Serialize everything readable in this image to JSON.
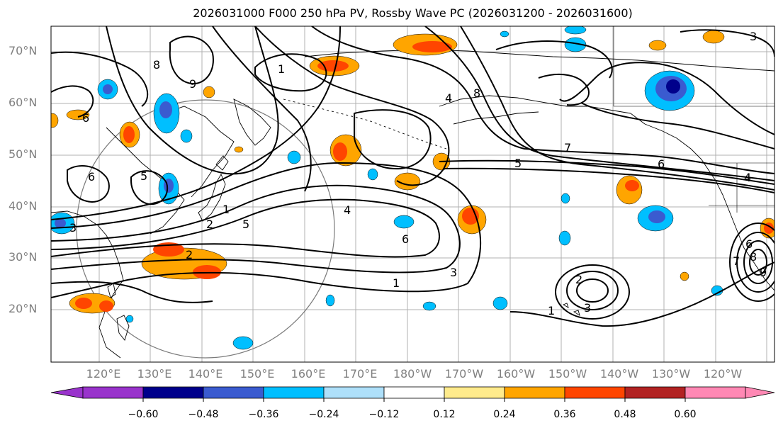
{
  "title": "2026031000 F000 250 hPa PV, Rossby Wave PC (2026031200 - 2026031600)",
  "lat_labels": [
    "70°N",
    "60°N",
    "50°N",
    "40°N",
    "30°N",
    "20°N"
  ],
  "lon_labels": [
    "120°E",
    "130°E",
    "140°E",
    "150°E",
    "160°E",
    "170°E",
    "180°W",
    "170°W",
    "160°W",
    "150°W",
    "140°W",
    "130°W",
    "120°W"
  ],
  "contour_labels": [
    "1",
    "8",
    "9",
    "4",
    "6",
    "8",
    "7",
    "5",
    "1",
    "6",
    "5",
    "3",
    "2",
    "1",
    "5",
    "4",
    "6",
    "3",
    "2",
    "1",
    "2",
    "3",
    "6",
    "4",
    "6",
    "7",
    "8",
    "9",
    "3"
  ],
  "colorbar": {
    "ticks": [
      "−0.60",
      "−0.48",
      "−0.36",
      "−0.24",
      "−0.12",
      "0.12",
      "0.24",
      "0.36",
      "0.48",
      "0.60"
    ],
    "colors": [
      "#9933cc",
      "#00008b",
      "#3a5bd0",
      "#00bfff",
      "#aee0fa",
      "#ffffff",
      "#ffeb8c",
      "#ffa500",
      "#ff4500",
      "#b22222",
      "#ff88b4"
    ]
  }
}
